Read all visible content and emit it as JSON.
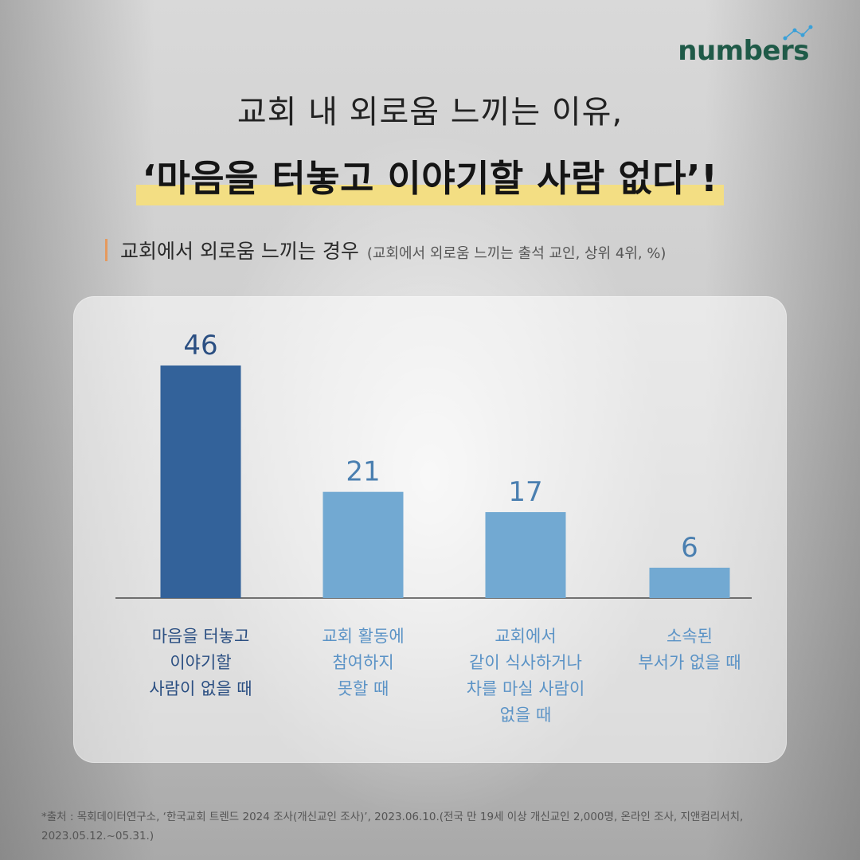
{
  "brand": {
    "logo_text": "numbers",
    "color": "#1f5a48"
  },
  "title": {
    "line1": "교회 내 외로움 느끼는 이유,",
    "line2": "‘마음을 터놓고 이야기할 사람 없다’!",
    "highlight_color": "#f3de83"
  },
  "subtitle": {
    "main": "교회에서 외로움 느끼는 경우",
    "note": "(교회에서 외로움 느끼는 출석 교인, 상위 4위, %)"
  },
  "chart_data": {
    "type": "bar",
    "categories": [
      "마음을 터놓고\n이야기할\n사람이 없을 때",
      "교회 활동에\n참여하지\n못할 때",
      "교회에서\n같이 식사하거나\n차를 마실 사람이\n없을 때",
      "소속된\n부서가 없을 때"
    ],
    "values": [
      46,
      21,
      17,
      6
    ],
    "unit": "%",
    "ylim": [
      0,
      50
    ],
    "grid": false,
    "colors": [
      "#33629a",
      "#72a9d2",
      "#72a9d2",
      "#72a9d2"
    ],
    "label_colors": [
      "#2b4f82",
      "#5b93c6",
      "#5b93c6",
      "#5b93c6"
    ],
    "value_label_colors": [
      "#2b4f82",
      "#4a7fb0",
      "#4a7fb0",
      "#4a7fb0"
    ]
  },
  "footnote": "*출처 : 목회데이터연구소, ‘한국교회 트렌드 2024 조사(개신교인 조사)’, 2023.06.10.(전국 만 19세 이상 개신교인 2,000명, 온라인 조사, 지앤컴리서치, 2023.05.12.~05.31.)"
}
